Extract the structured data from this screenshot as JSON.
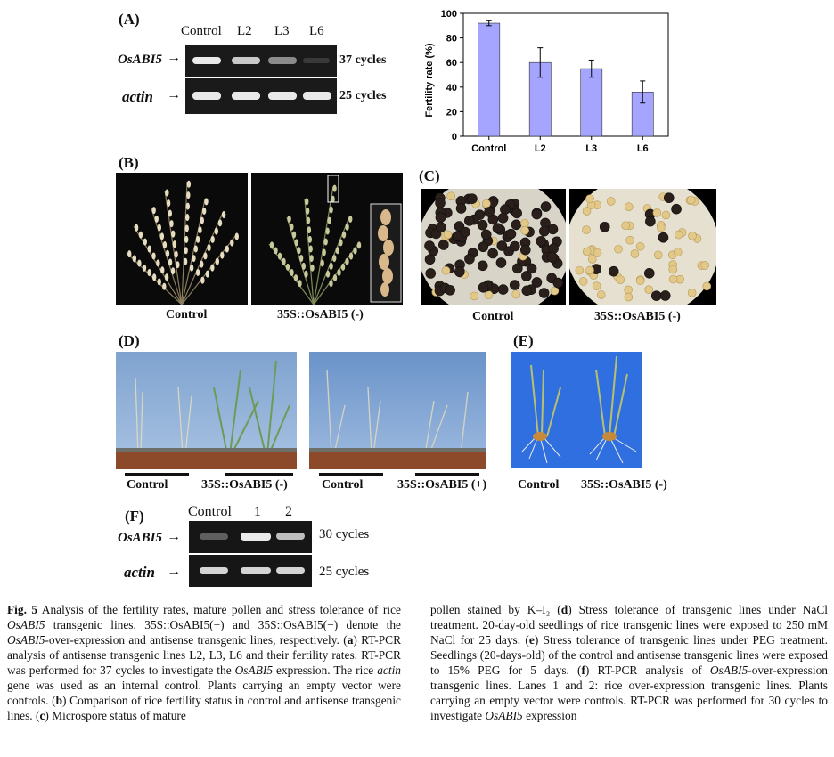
{
  "panel_a": {
    "label": "(A)",
    "lanes": [
      "Control",
      "L2",
      "L3",
      "L6"
    ],
    "rows": [
      {
        "gene": "OsABI5",
        "cycles": "37 cycles",
        "intensity": [
          1.0,
          0.85,
          0.55,
          0.15
        ]
      },
      {
        "gene": "actin",
        "cycles": "25 cycles",
        "intensity": [
          1.0,
          1.0,
          1.0,
          1.0
        ]
      }
    ]
  },
  "chart_data": {
    "type": "bar",
    "categories": [
      "Control",
      "L2",
      "L3",
      "L6"
    ],
    "values": [
      92,
      60,
      55,
      36
    ],
    "errors": [
      2,
      12,
      7,
      9
    ],
    "ylabel": "Fertility rate (%)",
    "ylim": [
      0,
      100
    ],
    "yticks": [
      "0",
      "20",
      "40",
      "60",
      "80",
      "100"
    ],
    "bar_color": "#a5a5ff"
  },
  "panel_b": {
    "label": "(B)",
    "captions": [
      "Control",
      "35S::OsABI5 (-)"
    ]
  },
  "panel_c": {
    "label": "(C)",
    "captions": [
      "Control",
      "35S::OsABI5 (-)"
    ]
  },
  "panel_d": {
    "label": "(D)",
    "captions": [
      "Control",
      "35S::OsABI5 (-)",
      "Control",
      "35S::OsABI5 (+)"
    ]
  },
  "panel_e": {
    "label": "(E)",
    "captions": [
      "Control",
      "35S::OsABI5 (-)"
    ]
  },
  "panel_f": {
    "label": "(F)",
    "lanes": [
      "Control",
      "1",
      "2"
    ],
    "rows": [
      {
        "gene": "OsABI5",
        "cycles": "30 cycles",
        "intensity": [
          0.35,
          1.0,
          0.8
        ]
      },
      {
        "gene": "actin",
        "cycles": "25 cycles",
        "intensity": [
          0.9,
          0.9,
          0.9
        ]
      }
    ]
  },
  "caption": {
    "left": [
      {
        "t": "Fig. 5",
        "s": "b"
      },
      {
        "t": " Analysis of the fertility rates, mature pollen and stress tolerance of rice "
      },
      {
        "t": "OsABI5",
        "s": "i"
      },
      {
        "t": " transgenic lines. 35S::OsABI5(+) and 35S::OsABI5(−) denote the "
      },
      {
        "t": "OsABI5",
        "s": "i"
      },
      {
        "t": "-over-expression and antisense transgenic lines, respectively. ("
      },
      {
        "t": "a",
        "s": "b"
      },
      {
        "t": ") RT-PCR analysis of antisense transgenic lines L2, L3, L6 and their fertility rates. RT-PCR was performed for 37 cycles to investigate the "
      },
      {
        "t": "OsABI5",
        "s": "i"
      },
      {
        "t": " expression. The rice "
      },
      {
        "t": "actin",
        "s": "i"
      },
      {
        "t": " gene was used as an internal control. Plants carrying an empty vector were controls. ("
      },
      {
        "t": "b",
        "s": "b"
      },
      {
        "t": ") Comparison of rice fertility status in control and antisense transgenic lines. ("
      },
      {
        "t": "c",
        "s": "b"
      },
      {
        "t": ") Microspore status of mature"
      }
    ],
    "right": [
      {
        "t": "pollen stained by K–I₂ ("
      },
      {
        "t": "d",
        "s": "b"
      },
      {
        "t": ") Stress tolerance of transgenic lines under NaCl treatment. 20-day-old seedlings of rice transgenic lines were exposed to 250 mM NaCl for 25 days. ("
      },
      {
        "t": "e",
        "s": "b"
      },
      {
        "t": ") Stress tolerance of transgenic lines under PEG treatment. Seedlings (20-days-old) of the control and antisense transgenic lines were exposed to 15% PEG for 5 days. ("
      },
      {
        "t": "f",
        "s": "b"
      },
      {
        "t": ") RT-PCR analysis of "
      },
      {
        "t": "OsABI5",
        "s": "i"
      },
      {
        "t": "-over-expression transgenic lines. Lanes 1 and 2: rice over-expression transgenic lines. Plants carrying an empty vector were controls. RT-PCR was performed for 30 cycles to investigate "
      },
      {
        "t": "OsABI5",
        "s": "i"
      },
      {
        "t": " expression"
      }
    ]
  }
}
